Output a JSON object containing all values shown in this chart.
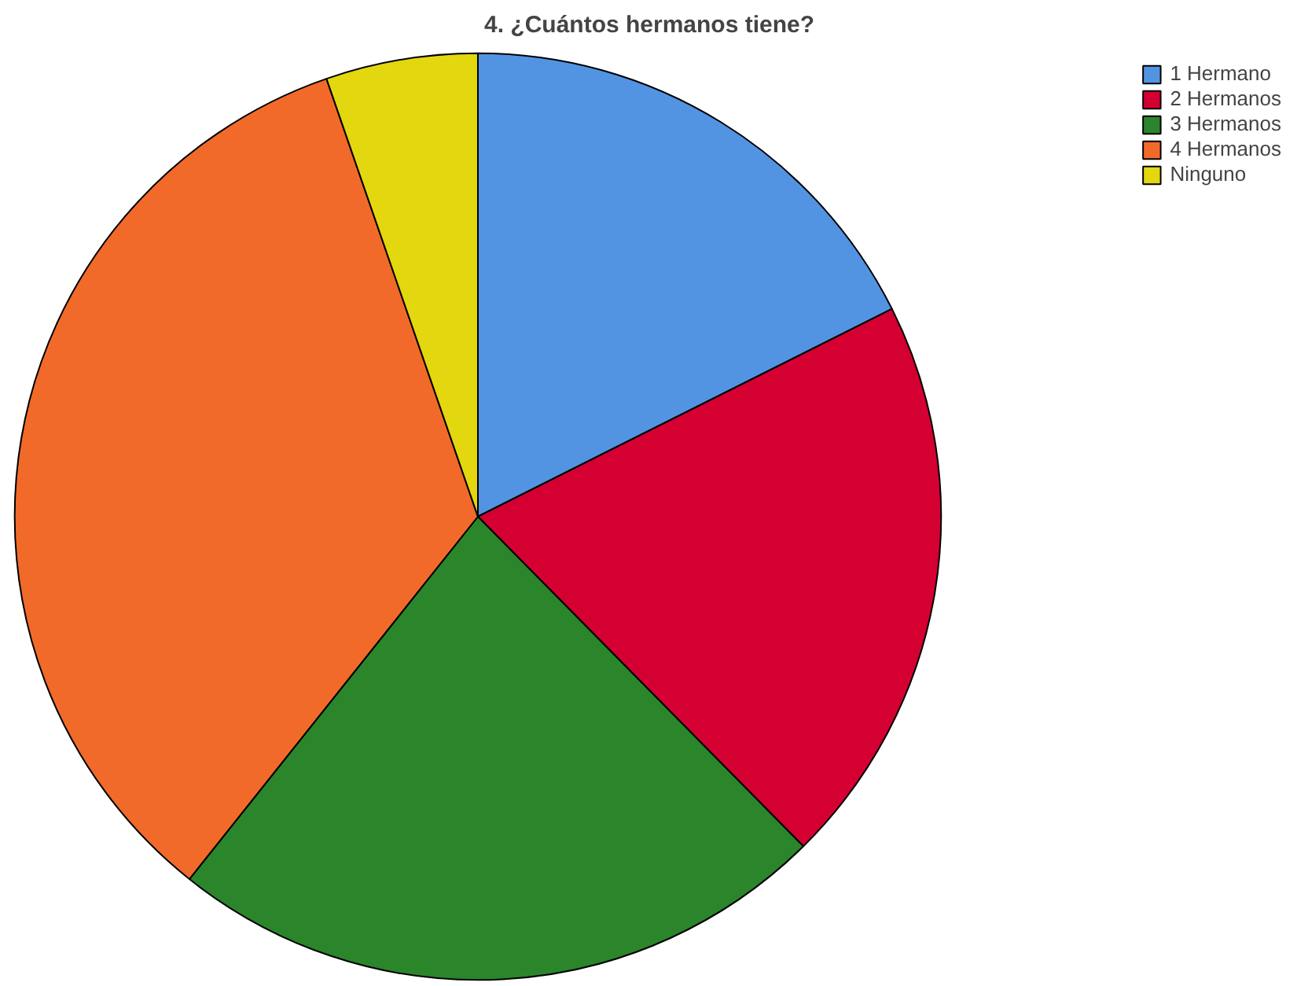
{
  "chart_data": {
    "type": "pie",
    "title": "4. ¿Cuántos hermanos tiene?",
    "categories": [
      "1 Hermano",
      "2 Hermanos",
      "3 Hermanos",
      "4 Hermanos",
      "Ninguno"
    ],
    "values": [
      17.6,
      20.0,
      23.1,
      34.0,
      5.3
    ],
    "colors": [
      "#5294e2",
      "#d50032",
      "#2a852b",
      "#f26a2a",
      "#e3d70f"
    ],
    "legend": "top right"
  }
}
